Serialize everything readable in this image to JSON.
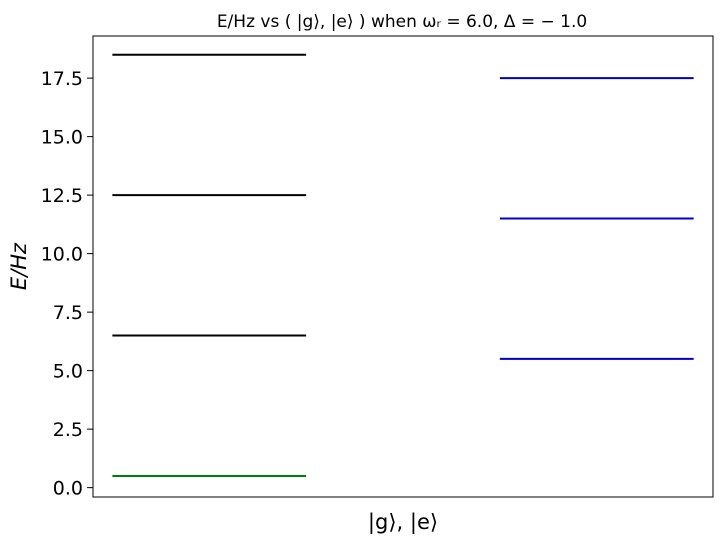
{
  "chart_data": {
    "type": "line",
    "title": "E/Hz vs ( |g⟩,  |e⟩ ) when ωᵣ = 6.0,  Δ = − 1.0",
    "xlabel": "|g⟩,  |e⟩",
    "ylabel": "E/Hz",
    "ylim": [
      -0.4,
      19.3
    ],
    "yticks": [
      0.0,
      2.5,
      5.0,
      7.5,
      10.0,
      12.5,
      15.0,
      17.5
    ],
    "ytick_labels": [
      "0.0",
      "2.5",
      "5.0",
      "7.5",
      "10.0",
      "12.5",
      "15.0",
      "17.5"
    ],
    "grid": false,
    "legend": "none",
    "series": [
      {
        "group": "g",
        "x_range": [
          0.0,
          1.0
        ],
        "values": [
          0.5
        ],
        "color": "#008000"
      },
      {
        "group": "g",
        "x_range": [
          0.0,
          1.0
        ],
        "values": [
          6.5,
          12.5,
          18.5
        ],
        "color": "#000000"
      },
      {
        "group": "e",
        "x_range": [
          2.0,
          3.0
        ],
        "values": [
          5.5,
          11.5,
          17.5
        ],
        "color": "#0000cc"
      }
    ],
    "xlim": [
      -0.1,
      3.1
    ]
  }
}
